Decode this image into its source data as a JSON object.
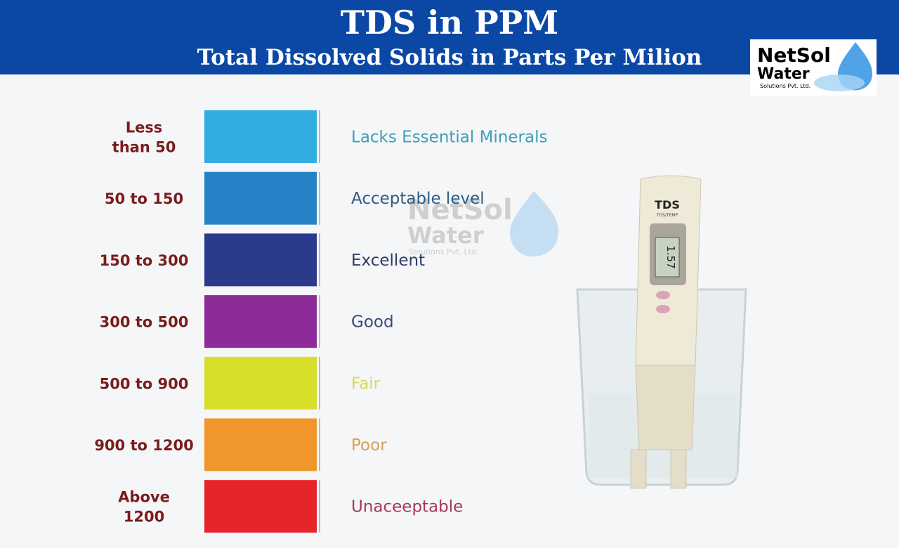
{
  "header": {
    "title": "TDS in PPM",
    "subtitle": "Total Dissolved Solids in Parts Per Milion"
  },
  "logo": {
    "line1": "NetSol",
    "line2": "Water",
    "tagline": "Solutions Pvt. Ltd."
  },
  "meter": {
    "label": "TDS",
    "sublabel": "TDS/TEMP",
    "reading": "1.57"
  },
  "rows": [
    {
      "range": [
        "Less",
        "than 50"
      ],
      "color": "#33ade0",
      "description": "Lacks Essential Minerals",
      "text_color": "#3f9fb5"
    },
    {
      "range": [
        "50 to 150"
      ],
      "color": "#2582c6",
      "description": "Acceptable level",
      "text_color": "#2c5d86"
    },
    {
      "range": [
        "150 to 300"
      ],
      "color": "#2c3a8c",
      "description": "Excellent",
      "text_color": "#2f3d66"
    },
    {
      "range": [
        "300 to 500"
      ],
      "color": "#8e2b98",
      "description": "Good",
      "text_color": "#3b4a78"
    },
    {
      "range": [
        "500 to 900"
      ],
      "color": "#d6de2a",
      "description": "Fair",
      "text_color": "#d8d860"
    },
    {
      "range": [
        "900 to 1200"
      ],
      "color": "#f0962a",
      "description": "Poor",
      "text_color": "#d9a055"
    },
    {
      "range": [
        "Above",
        "1200"
      ],
      "color": "#e5242b",
      "description": "Unaceeptable",
      "text_color": "#a8385a"
    }
  ]
}
